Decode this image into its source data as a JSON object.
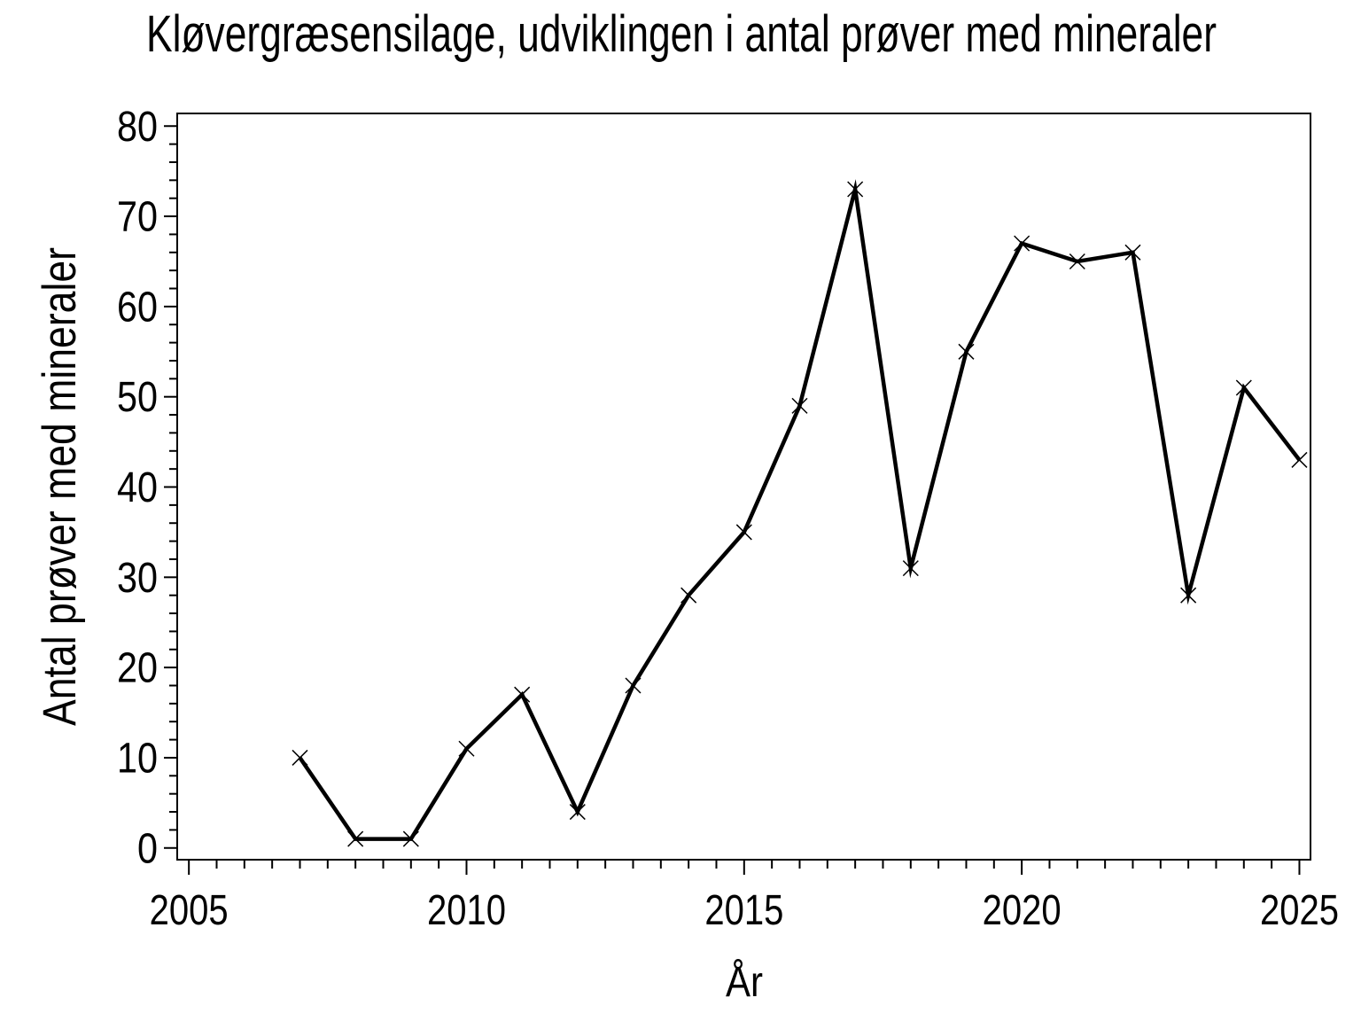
{
  "window": {
    "background_color": "#ffffff"
  },
  "chart_data": {
    "type": "line",
    "title": "Kløvergræsensilage, udviklingen i antal prøver med mineraler",
    "xlabel": "År",
    "ylabel": "Antal prøver med mineraler",
    "x": [
      2007,
      2008,
      2009,
      2010,
      2011,
      2012,
      2013,
      2014,
      2015,
      2016,
      2017,
      2018,
      2019,
      2020,
      2021,
      2022,
      2023,
      2024,
      2025
    ],
    "values": [
      10,
      1,
      1,
      11,
      17,
      4,
      18,
      28,
      35,
      49,
      73,
      31,
      55,
      67,
      65,
      66,
      28,
      51,
      43
    ],
    "series": [
      {
        "name": "Antal prøver med mineraler",
        "values": [
          10,
          1,
          1,
          11,
          17,
          4,
          18,
          28,
          35,
          49,
          73,
          31,
          55,
          67,
          65,
          66,
          28,
          51,
          43
        ]
      }
    ],
    "marker": "x",
    "line_color": "#000000",
    "text_color": "#000000",
    "background_color": "#ffffff",
    "grid": false,
    "legend": null,
    "xlim": [
      2004.79,
      2025.2
    ],
    "ylim": [
      -1.3,
      81.4
    ],
    "x_major_ticks": [
      2005,
      2010,
      2015,
      2020,
      2025
    ],
    "x_major_tick_labels": [
      "2005",
      "2010",
      "2015",
      "2020",
      "2025"
    ],
    "x_minor_tick_step": 0.5,
    "y_major_ticks": [
      0,
      10,
      20,
      30,
      40,
      50,
      60,
      70,
      80
    ],
    "y_major_tick_labels": [
      "0",
      "10",
      "20",
      "30",
      "40",
      "50",
      "60",
      "70",
      "80"
    ],
    "y_minor_tick_step": 2
  }
}
